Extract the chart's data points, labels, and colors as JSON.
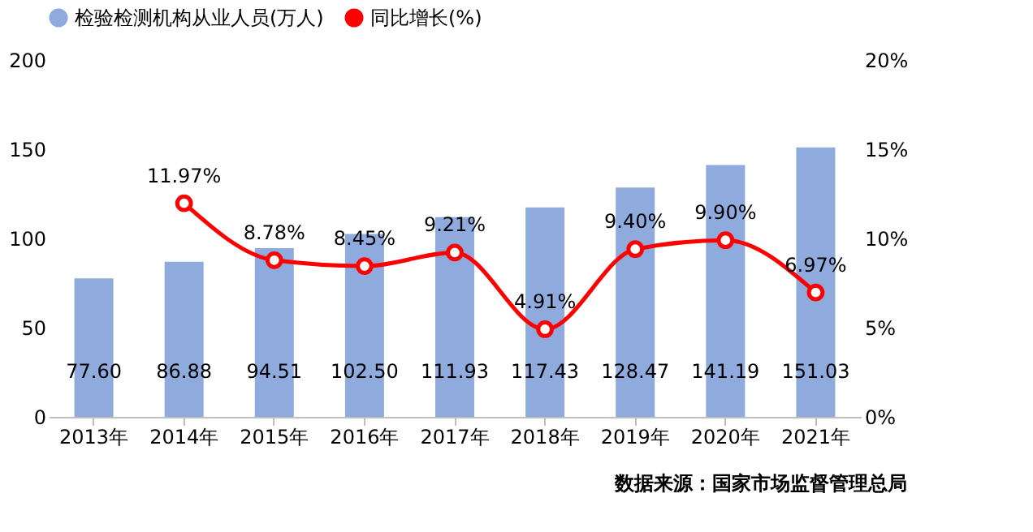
{
  "chart_data": {
    "type": "bar",
    "categories": [
      "2013年",
      "2014年",
      "2015年",
      "2016年",
      "2017年",
      "2018年",
      "2019年",
      "2020年",
      "2021年"
    ],
    "series": [
      {
        "name": "检验检测机构从业人员(万人)",
        "color": "#8faadc",
        "values": [
          77.6,
          86.88,
          94.51,
          102.5,
          111.93,
          117.43,
          128.47,
          141.19,
          151.03
        ],
        "value_labels": [
          "77.60",
          "86.88",
          "94.51",
          "102.50",
          "111.93",
          "117.43",
          "128.47",
          "141.19",
          "151.03"
        ]
      },
      {
        "name": "同比增长(%)",
        "type": "line",
        "axis": "y2",
        "color": "#ff0000",
        "marker": "circle",
        "line_style": "solid",
        "values": [
          null,
          11.97,
          8.78,
          8.45,
          9.21,
          4.91,
          9.4,
          9.9,
          6.97
        ],
        "value_labels": [
          null,
          "11.97%",
          "8.78%",
          "8.45%",
          "9.21%",
          "4.91%",
          "9.40%",
          "9.90%",
          "6.97%"
        ]
      }
    ],
    "ylim": [
      0,
      200
    ],
    "yticks": [
      0,
      50,
      100,
      150,
      200
    ],
    "y2lim": [
      0,
      20
    ],
    "y2ticks": [
      {
        "value": 0,
        "label": "0%"
      },
      {
        "value": 5,
        "label": "5%"
      },
      {
        "value": 10,
        "label": "10%"
      },
      {
        "value": 15,
        "label": "15%"
      },
      {
        "value": 20,
        "label": "20%"
      }
    ],
    "grid": false,
    "legend": "top",
    "annotations": [
      "数据来源：国家市场监督管理总局"
    ]
  }
}
